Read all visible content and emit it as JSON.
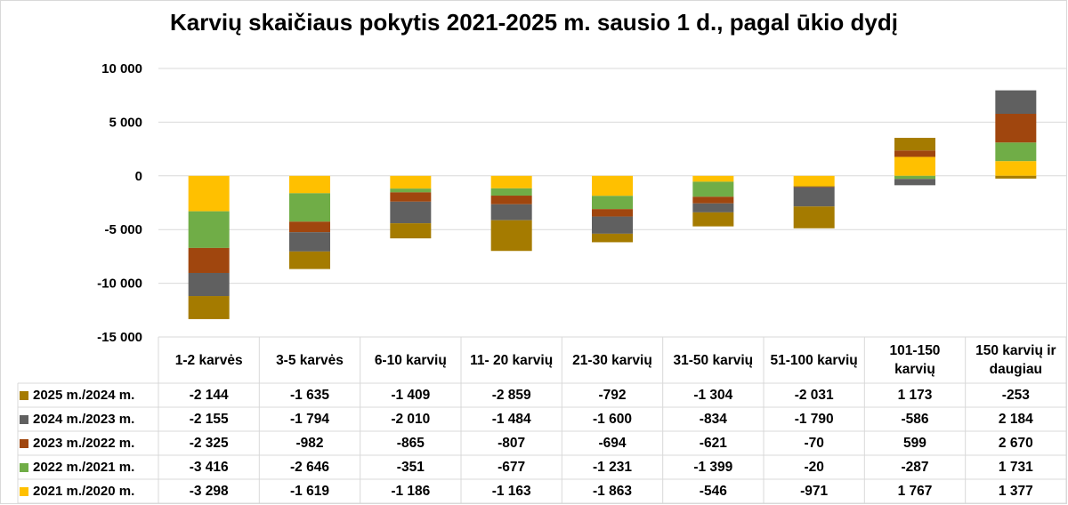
{
  "chart_data": {
    "type": "bar",
    "stacked": true,
    "title": "Karvių skaičiaus pokytis 2021-2025 m. sausio 1 d., pagal ūkio dydį",
    "xlabel": "",
    "ylabel": "",
    "ylim": [
      -15000,
      10000
    ],
    "yticks": [
      "10 000",
      "5 000",
      "0",
      "-5 000",
      "-10 000",
      "-15 000"
    ],
    "grid": true,
    "legend": "data-table-left",
    "categories": [
      "1-2 karvės",
      "3-5 karvės",
      "6-10 karvių",
      "11- 20 karvių",
      "21-30 karvių",
      "31-50 karvių",
      "51-100 karvių",
      "101-150 karvių",
      "150 karvių ir daugiau"
    ],
    "series": [
      {
        "name": "2025 m./2024 m.",
        "color": "#A57B00",
        "values": [
          -2144,
          -1635,
          -1409,
          -2859,
          -792,
          -1304,
          -2031,
          1173,
          -253
        ],
        "labels": [
          "-2 144",
          "-1 635",
          "-1 409",
          "-2 859",
          "-792",
          "-1 304",
          "-2 031",
          "1 173",
          "-253"
        ]
      },
      {
        "name": "2024 m./2023 m.",
        "color": "#606060",
        "values": [
          -2155,
          -1794,
          -2010,
          -1484,
          -1600,
          -834,
          -1790,
          -586,
          2184
        ],
        "labels": [
          "-2 155",
          "-1 794",
          "-2 010",
          "-1 484",
          "-1 600",
          "-834",
          "-1 790",
          "-586",
          "2 184"
        ]
      },
      {
        "name": "2023 m./2022 m.",
        "color": "#A0460E",
        "values": [
          -2325,
          -982,
          -865,
          -807,
          -694,
          -621,
          -70,
          599,
          2670
        ],
        "labels": [
          "-2 325",
          "-982",
          "-865",
          "-807",
          "-694",
          "-621",
          "-70",
          "599",
          "2 670"
        ]
      },
      {
        "name": "2022 m./2021 m.",
        "color": "#70AD47",
        "values": [
          -3416,
          -2646,
          -351,
          -677,
          -1231,
          -1399,
          -20,
          -287,
          1731
        ],
        "labels": [
          "-3 416",
          "-2 646",
          "-351",
          "-677",
          "-1 231",
          "-1 399",
          "-20",
          "-287",
          "1 731"
        ]
      },
      {
        "name": "2021 m./2020 m.",
        "color": "#FFC000",
        "values": [
          -3298,
          -1619,
          -1186,
          -1163,
          -1863,
          -546,
          -971,
          1767,
          1377
        ],
        "labels": [
          "-3 298",
          "-1 619",
          "-1 186",
          "-1 163",
          "-1 863",
          "-546",
          "-971",
          "1 767",
          "1 377"
        ]
      }
    ]
  }
}
